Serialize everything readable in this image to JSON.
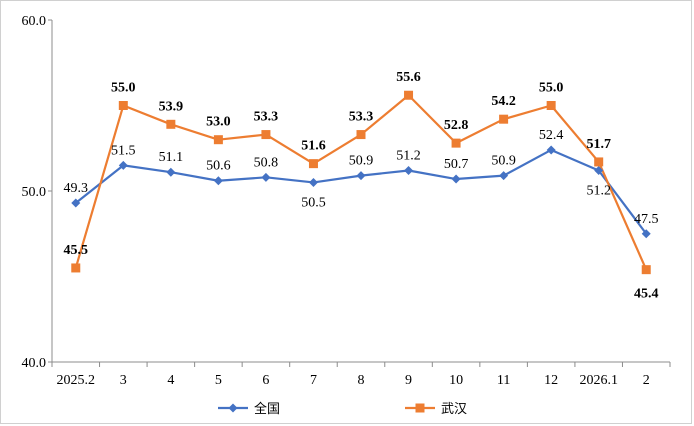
{
  "chart_data": {
    "type": "line",
    "categories": [
      "2025.2",
      "3",
      "4",
      "5",
      "6",
      "7",
      "8",
      "9",
      "10",
      "11",
      "12",
      "2026.1",
      "2"
    ],
    "ylim": [
      40.0,
      60.0
    ],
    "yticks": [
      "40.0",
      "50.0",
      "60.0"
    ],
    "grid": false,
    "legend_position": "bottom",
    "series": [
      {
        "name": "全国",
        "color": "#4472C4",
        "marker": "diamond",
        "values": [
          49.3,
          51.5,
          51.1,
          50.6,
          50.8,
          50.5,
          50.9,
          51.2,
          50.7,
          50.9,
          52.4,
          51.2,
          47.5
        ],
        "labels": [
          "49.3",
          "51.5",
          "51.1",
          "50.6",
          "50.8",
          "50.5",
          "50.9",
          "51.2",
          "50.7",
          "50.9",
          "52.4",
          "51.2",
          "47.5"
        ]
      },
      {
        "name": "武汉",
        "color": "#ED7D31",
        "marker": "square",
        "values": [
          45.5,
          55.0,
          53.9,
          53.0,
          53.3,
          51.6,
          53.3,
          55.6,
          52.8,
          54.2,
          55.0,
          51.7,
          45.4
        ],
        "labels": [
          "45.5",
          "55.0",
          "53.9",
          "53.0",
          "53.3",
          "51.6",
          "53.3",
          "55.6",
          "52.8",
          "54.2",
          "55.0",
          "51.7",
          "45.4"
        ]
      }
    ]
  }
}
